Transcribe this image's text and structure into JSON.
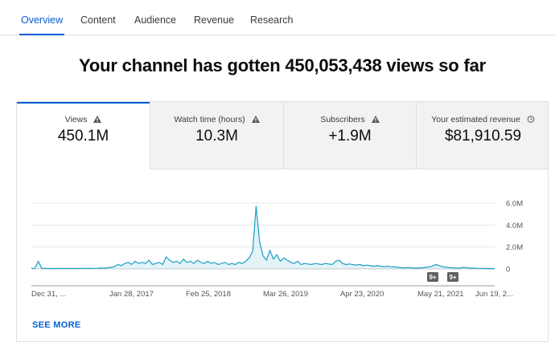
{
  "tabs": [
    {
      "label": "Overview",
      "active": true
    },
    {
      "label": "Content",
      "active": false
    },
    {
      "label": "Audience",
      "active": false
    },
    {
      "label": "Revenue",
      "active": false
    },
    {
      "label": "Research",
      "active": false
    }
  ],
  "headline": "Your channel has gotten 450,053,438 views so far",
  "metrics": [
    {
      "label": "Views",
      "value": "450.1M",
      "icon": "warning-icon"
    },
    {
      "label": "Watch time (hours)",
      "value": "10.3M",
      "icon": "warning-icon"
    },
    {
      "label": "Subscribers",
      "value": "+1.9M",
      "icon": "warning-icon"
    },
    {
      "label": "Your estimated revenue",
      "value": "$81,910.59",
      "icon": "clock-icon"
    }
  ],
  "colors": {
    "accent": "#065fd4",
    "line": "#1a9fc3"
  },
  "see_more": "SEE MORE",
  "chart_data": {
    "type": "line",
    "x_tick_labels": [
      "Dec 31, ...",
      "Jan 28, 2017",
      "Feb 25, 2018",
      "Mar 26, 2019",
      "Apr 23, 2020",
      "May 21, 2021",
      "Jun 19, 2..."
    ],
    "y_tick_labels": [
      "6.0M",
      "4.0M",
      "2.0M",
      "0"
    ],
    "ylim": [
      0,
      6000000
    ],
    "grid": true,
    "annotations": [
      "9+",
      "9+"
    ],
    "series": [
      {
        "values": [
          60000,
          50000,
          700000,
          60000,
          50000,
          40000,
          40000,
          50000,
          40000,
          50000,
          40000,
          50000,
          40000,
          50000,
          50000,
          60000,
          50000,
          60000,
          50000,
          60000,
          80000,
          70000,
          100000,
          150000,
          200000,
          400000,
          300000,
          500000,
          600000,
          400000,
          700000,
          500000,
          600000,
          500000,
          800000,
          400000,
          500000,
          600000,
          400000,
          1100000,
          800000,
          600000,
          700000,
          500000,
          900000,
          600000,
          700000,
          500000,
          800000,
          600000,
          500000,
          700000,
          500000,
          600000,
          400000,
          500000,
          600000,
          400000,
          500000,
          400000,
          600000,
          500000,
          700000,
          1000000,
          1600000,
          5700000,
          2500000,
          1200000,
          800000,
          1700000,
          900000,
          1300000,
          700000,
          1000000,
          800000,
          600000,
          500000,
          700000,
          400000,
          500000,
          450000,
          400000,
          500000,
          450000,
          400000,
          500000,
          450000,
          400000,
          700000,
          800000,
          500000,
          400000,
          450000,
          400000,
          350000,
          400000,
          300000,
          350000,
          300000,
          250000,
          300000,
          250000,
          200000,
          250000,
          200000,
          180000,
          150000,
          120000,
          100000,
          120000,
          100000,
          90000,
          80000,
          100000,
          150000,
          200000,
          250000,
          400000,
          300000,
          200000,
          150000,
          120000,
          100000,
          90000,
          80000,
          150000,
          100000,
          80000,
          70000,
          60000,
          50000,
          40000,
          40000,
          30000,
          30000
        ]
      }
    ]
  }
}
